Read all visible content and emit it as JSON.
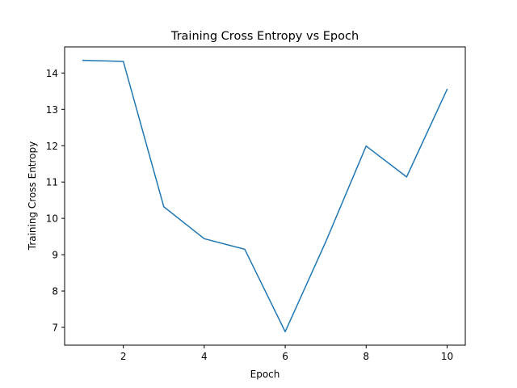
{
  "chart_data": {
    "type": "line",
    "title": "Training Cross Entropy vs Epoch",
    "xlabel": "Epoch",
    "ylabel": "Training Cross Entropy",
    "xlim": [
      0.55,
      10.45
    ],
    "ylim": [
      6.51,
      14.72
    ],
    "xticks": [
      2,
      4,
      6,
      8,
      10
    ],
    "yticks": [
      7,
      8,
      9,
      10,
      11,
      12,
      13,
      14
    ],
    "grid": false,
    "series": [
      {
        "color": "#1f77b4",
        "x": [
          1,
          2,
          3,
          4,
          5,
          6,
          7,
          8,
          9,
          10
        ],
        "y": [
          14.35,
          14.32,
          10.32,
          9.44,
          9.15,
          6.88,
          9.35,
          11.99,
          11.14,
          13.55
        ]
      }
    ]
  }
}
